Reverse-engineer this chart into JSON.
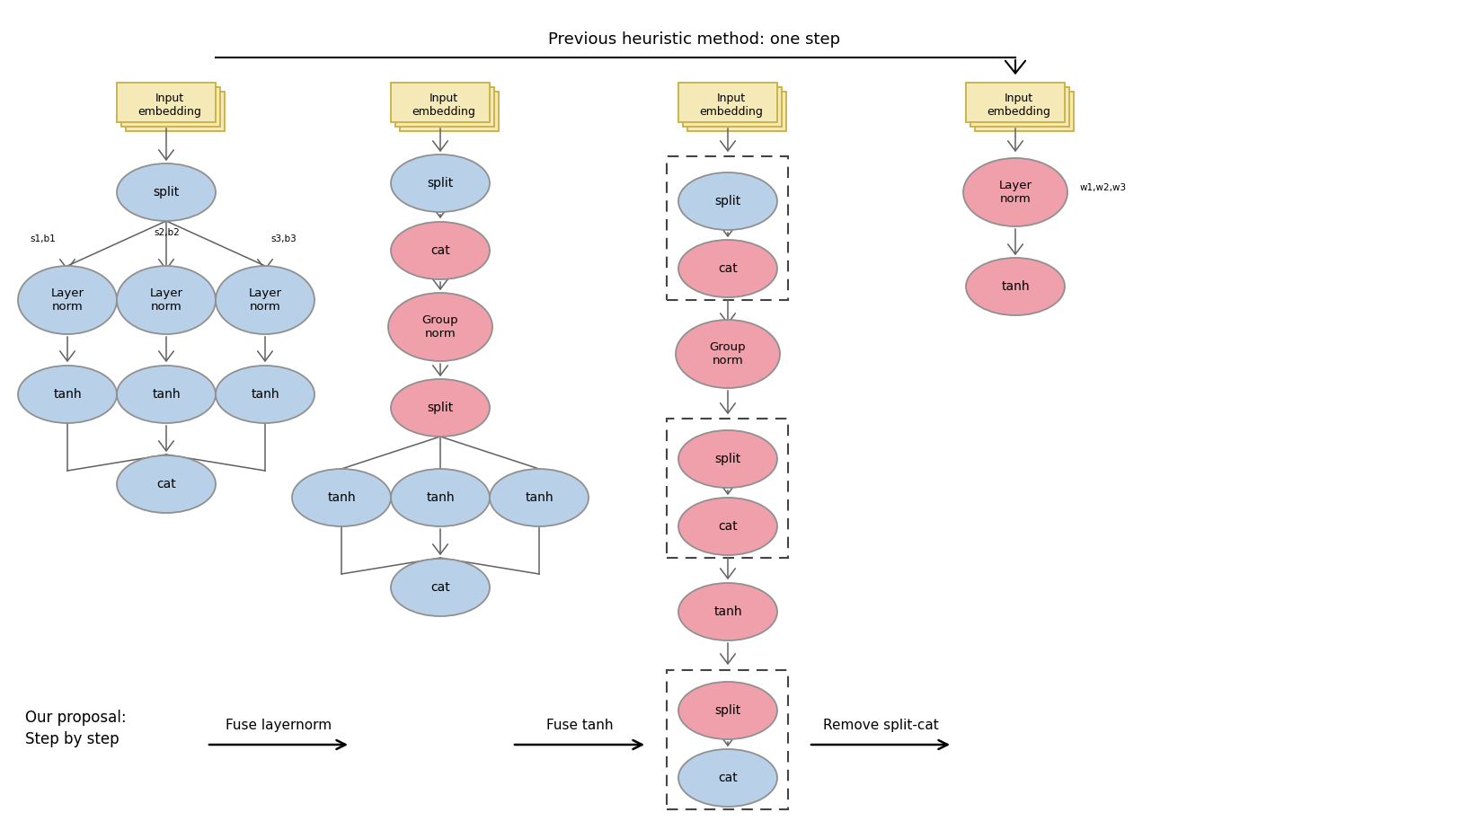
{
  "title": "Previous heuristic method: one step",
  "bottom_left_text": "Our proposal:\nStep by step",
  "arrow_labels": [
    "Fuse layernorm",
    "Fuse tanh",
    "Remove split-cat"
  ],
  "blue_color": "#b8d0e8",
  "pink_color": "#f0a0aa",
  "yellow_color": "#f5e9b8",
  "yellow_border": "#c8b040",
  "node_edge_color": "#909090",
  "background": "#ffffff",
  "dashed_box_color": "#444444",
  "g1x": 170,
  "g2x": 490,
  "g3x": 810,
  "g4x": 1130,
  "fig_w": 1646,
  "fig_h": 924
}
